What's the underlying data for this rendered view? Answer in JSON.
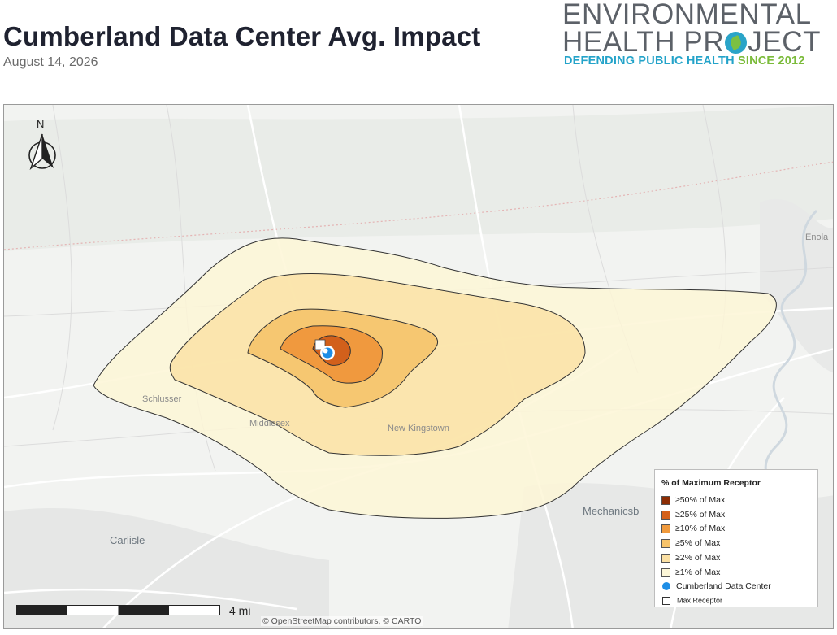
{
  "header": {
    "title": "Cumberland Data Center Avg. Impact",
    "date": "August 14, 2026"
  },
  "logo": {
    "line1": "ENVIRONMENTAL",
    "line2_a": "HEALTH PR",
    "line2_b": "JECT",
    "tagline_a": "DEFENDING PUBLIC HEALTH",
    "tagline_b": "SINCE 2012",
    "colors": {
      "blue": "#23a3c9",
      "green": "#7bbb3a",
      "gray": "#5c6168"
    }
  },
  "map": {
    "north_label": "N",
    "scale_label": "4 mi",
    "attribution": "© OpenStreetMap contributors, © CARTO",
    "places": {
      "schlusser": "Schlusser",
      "middlesex": "Middlesex",
      "new_kingstown": "New Kingstown",
      "mechanicsburg": "Mechanicsb",
      "carlisle": "Carlisle",
      "enola": "Enola"
    }
  },
  "legend": {
    "title": "% of Maximum Receptor",
    "items": [
      {
        "label": "≥50% of Max",
        "color": "#8c2d04"
      },
      {
        "label": "≥25% of Max",
        "color": "#d4601a"
      },
      {
        "label": "≥10% of Max",
        "color": "#f09a3c"
      },
      {
        "label": "≥5% of Max",
        "color": "#f7c36a"
      },
      {
        "label": "≥2% of Max",
        "color": "#fbe0a3"
      },
      {
        "label": "≥1% of Max",
        "color": "#fdf7d8"
      }
    ],
    "facility_label": "Cumberland Data Center",
    "facility_color": "#1e8ee6",
    "receptor_label": "Max Receptor"
  }
}
